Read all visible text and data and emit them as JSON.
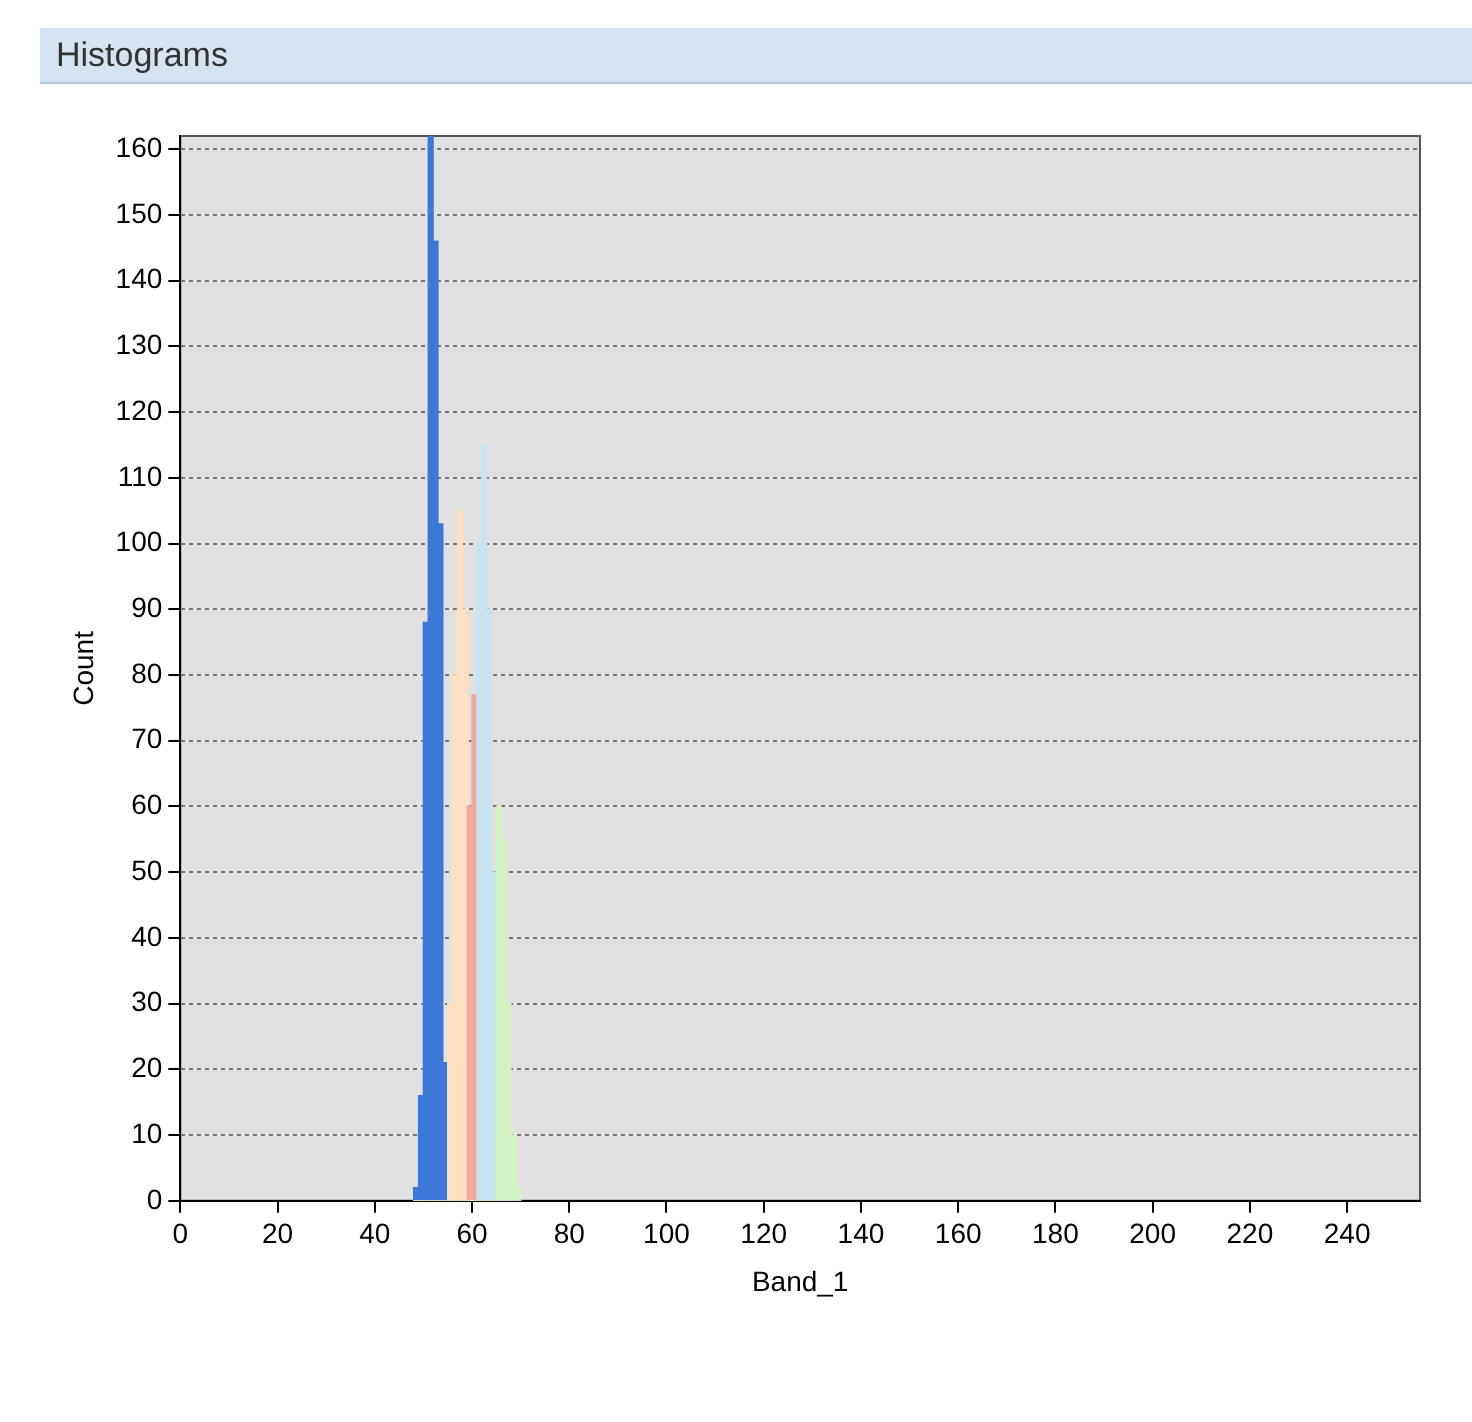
{
  "chart_data": {
    "type": "histogram",
    "title": "Histograms",
    "xlabel": "Band_1",
    "ylabel": "Count",
    "bins": [
      48,
      49,
      50,
      51,
      52,
      53,
      54,
      55,
      56,
      57,
      58,
      59,
      60,
      61,
      62,
      63,
      64,
      65,
      66,
      67,
      68,
      69,
      70
    ],
    "series": [
      {
        "color": "#d3f3c0",
        "values": [
          0,
          0,
          0,
          0,
          0,
          0,
          0,
          0,
          0,
          0,
          0,
          0,
          0,
          0,
          0,
          0,
          0,
          60,
          55,
          30,
          10,
          2
        ]
      },
      {
        "color": "#c8e4f0",
        "values": [
          0,
          0,
          0,
          0,
          0,
          0,
          0,
          0,
          0,
          0,
          0,
          0,
          0,
          100,
          115,
          90,
          50,
          0,
          0,
          0,
          0,
          0
        ]
      },
      {
        "color": "#f2a89a",
        "values": [
          0,
          0,
          0,
          0,
          0,
          0,
          0,
          0,
          0,
          0,
          0,
          60,
          77,
          0,
          0,
          0,
          0,
          0,
          0,
          0,
          0,
          0
        ]
      },
      {
        "color": "#fde0bf",
        "values": [
          0,
          0,
          0,
          0,
          0,
          0,
          0,
          30,
          80,
          105,
          90,
          0,
          0,
          0,
          0,
          0,
          0,
          0,
          0,
          0,
          0,
          0
        ]
      },
      {
        "color": "#3b78d8",
        "values": [
          2,
          16,
          88,
          162,
          146,
          103,
          21,
          0,
          0,
          0,
          0,
          0,
          0,
          0,
          0,
          0,
          0,
          0,
          0,
          0,
          0,
          0
        ]
      }
    ],
    "xlim": [
      0,
      255
    ],
    "xticks": [
      0,
      20,
      40,
      60,
      80,
      100,
      120,
      140,
      160,
      180,
      200,
      220,
      240
    ],
    "ylim": [
      0,
      162
    ],
    "yticks": [
      0,
      10,
      20,
      30,
      40,
      50,
      60,
      70,
      80,
      90,
      100,
      110,
      120,
      130,
      140,
      150,
      160
    ],
    "grid": "y"
  }
}
